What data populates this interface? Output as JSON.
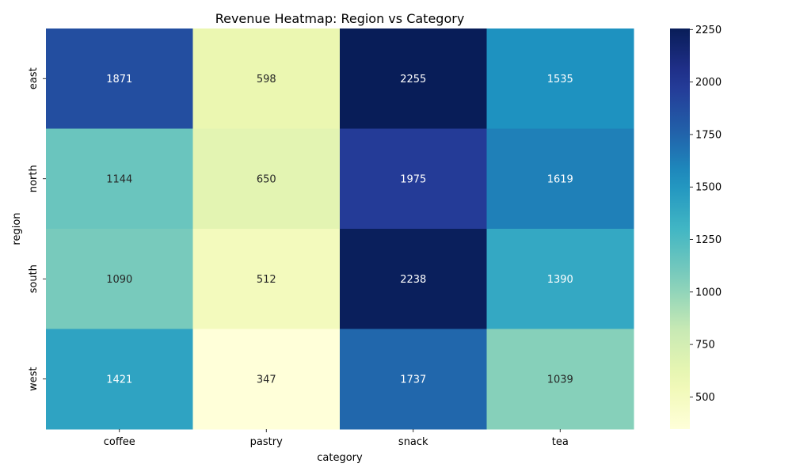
{
  "chart_data": {
    "type": "heatmap",
    "title": "Revenue Heatmap: Region vs Category",
    "xlabel": "category",
    "ylabel": "region",
    "categories": [
      "coffee",
      "pastry",
      "snack",
      "tea"
    ],
    "rows": [
      "east",
      "north",
      "south",
      "west"
    ],
    "values": [
      [
        1871,
        598,
        2255,
        1535
      ],
      [
        1144,
        650,
        1975,
        1619
      ],
      [
        1090,
        512,
        2238,
        1390
      ],
      [
        1421,
        347,
        1737,
        1039
      ]
    ],
    "color_range": [
      347,
      2255
    ],
    "colorbar_ticks": [
      500,
      750,
      1000,
      1250,
      1500,
      1750,
      2000,
      2250
    ],
    "colormap": "YlGnBu"
  }
}
